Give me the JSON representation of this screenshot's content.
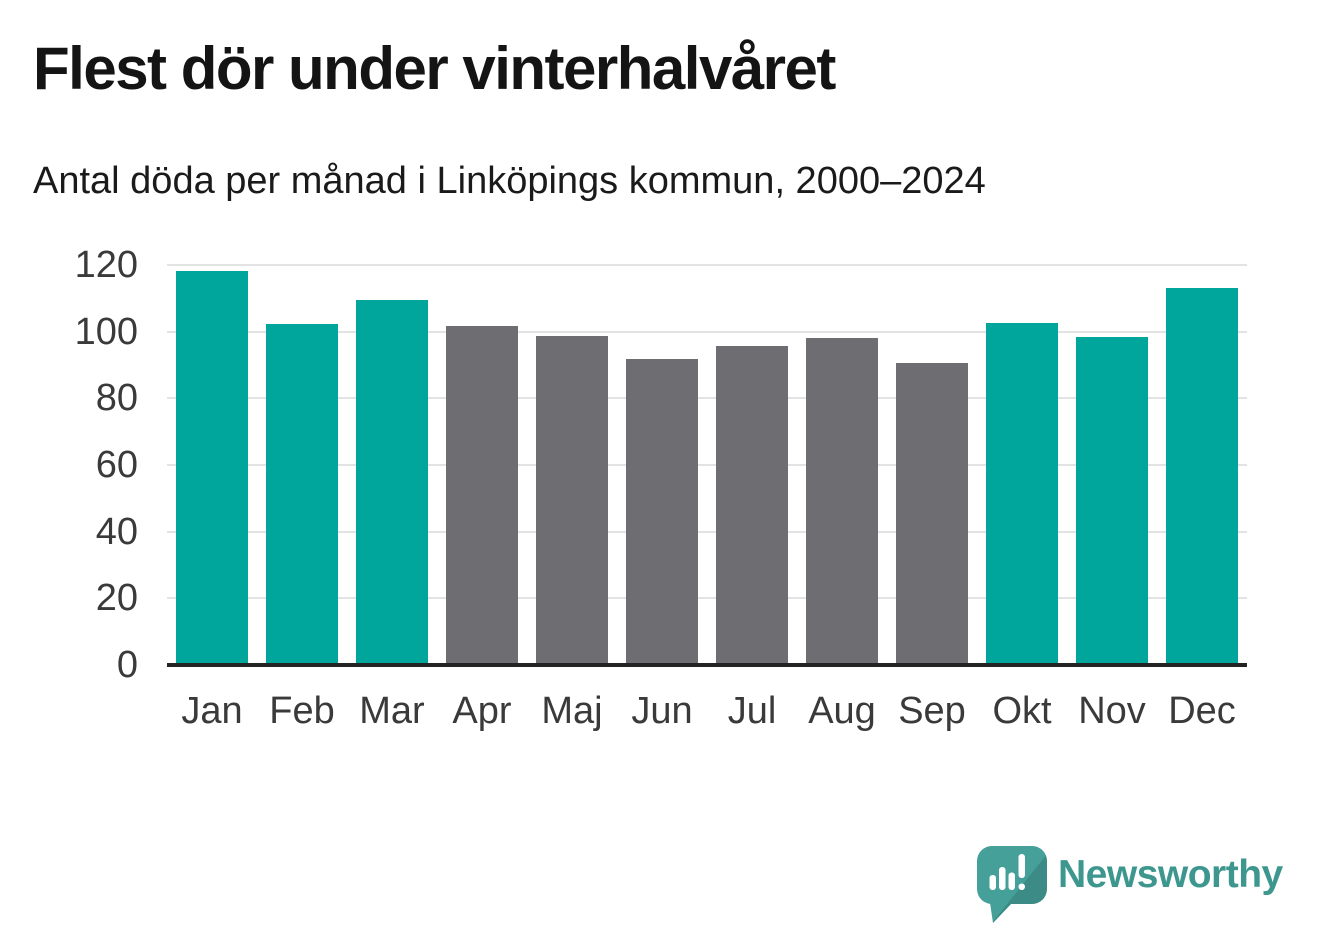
{
  "branding": {
    "logo_text": "Newsworthy",
    "logo_icon": "newsworthy-speech-bubble-chart-icon"
  },
  "colors": {
    "winter_bar": "#00a69c",
    "summer_bar": "#6d6d72",
    "axis_line": "#232323",
    "gridline": "#e3e3e3",
    "tick_label": "#3a3a3a",
    "title_text": "#141414",
    "logo_teal": "#3e978f"
  },
  "chart_data": {
    "type": "bar",
    "title": "Flest dör under vinterhalvåret",
    "subtitle": "Antal döda per månad i Linköpings kommun, 2000–2024",
    "categories": [
      "Jan",
      "Feb",
      "Mar",
      "Apr",
      "Maj",
      "Jun",
      "Jul",
      "Aug",
      "Sep",
      "Okt",
      "Nov",
      "Dec"
    ],
    "values": [
      118.3,
      102.4,
      109.4,
      101.7,
      98.7,
      91.8,
      95.8,
      98,
      90.6,
      102.7,
      98.4,
      113.2
    ],
    "bar_groups": [
      "winter",
      "winter",
      "winter",
      "summer",
      "summer",
      "summer",
      "summer",
      "summer",
      "summer",
      "winter",
      "winter",
      "winter"
    ],
    "bar_palette": {
      "winter": "#00a69c",
      "summer": "#6d6d72"
    },
    "xlabel": "",
    "ylabel": "",
    "ylim": [
      0,
      120
    ],
    "yticks": [
      0,
      20,
      40,
      60,
      80,
      100,
      120
    ],
    "grid": true,
    "legend_position": "none"
  }
}
